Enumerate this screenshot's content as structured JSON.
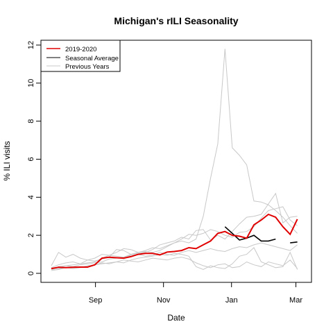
{
  "chart_data": {
    "type": "line",
    "title": "Michigan's rILI Seasonality",
    "xlabel": "Date",
    "ylabel": "% ILI visits",
    "x_ticks": [
      "Sep",
      "Nov",
      "Jan",
      "Mar"
    ],
    "y_ticks": [
      0,
      2,
      4,
      6,
      8,
      10,
      12
    ],
    "ylim": [
      0,
      12
    ],
    "legend": {
      "placement": "top-left",
      "entries": [
        "2019-2020",
        "Seasonal Average",
        "Previous Years"
      ]
    },
    "series": [
      {
        "name": "2019-2020",
        "color": "#e00000",
        "points": [
          [
            0,
            0.25
          ],
          [
            1,
            0.32
          ],
          [
            2,
            0.3
          ],
          [
            3,
            0.32
          ],
          [
            4,
            0.33
          ],
          [
            5,
            0.33
          ],
          [
            6,
            0.45
          ],
          [
            7,
            0.8
          ],
          [
            8,
            0.85
          ],
          [
            9,
            0.82
          ],
          [
            10,
            0.8
          ],
          [
            11,
            0.88
          ],
          [
            12,
            1.0
          ],
          [
            13,
            1.05
          ],
          [
            14,
            1.05
          ],
          [
            15,
            0.97
          ],
          [
            16,
            1.12
          ],
          [
            17,
            1.15
          ],
          [
            18,
            1.2
          ],
          [
            19,
            1.35
          ],
          [
            20,
            1.3
          ],
          [
            21,
            1.5
          ],
          [
            22,
            1.7
          ],
          [
            23,
            2.1
          ],
          [
            24,
            2.2
          ],
          [
            25,
            2.0
          ],
          [
            26,
            1.95
          ],
          [
            27,
            1.85
          ],
          [
            28,
            2.55
          ],
          [
            29,
            2.8
          ],
          [
            30,
            3.1
          ],
          [
            31,
            2.95
          ],
          [
            32,
            2.45
          ],
          [
            33,
            2.05
          ],
          [
            34,
            2.85
          ]
        ]
      },
      {
        "name": "Seasonal Average",
        "color": "#000000",
        "segments": [
          [
            [
              24,
              2.45
            ],
            [
              25,
              2.1
            ],
            [
              26,
              1.75
            ],
            [
              27,
              1.85
            ],
            [
              28,
              2.0
            ],
            [
              29,
              1.7
            ],
            [
              30,
              1.7
            ],
            [
              31,
              1.8
            ]
          ],
          [
            [
              33,
              1.6
            ],
            [
              34,
              1.65
            ]
          ]
        ]
      },
      {
        "name": "Previous Years",
        "color": "#c8c8c8",
        "lines": [
          [
            [
              0,
              0.25
            ],
            [
              1,
              0.3
            ],
            [
              2,
              0.4
            ],
            [
              3,
              0.45
            ],
            [
              4,
              0.5
            ],
            [
              5,
              0.55
            ],
            [
              6,
              0.6
            ],
            [
              7,
              0.8
            ],
            [
              8,
              0.95
            ],
            [
              9,
              0.9
            ],
            [
              10,
              0.85
            ],
            [
              11,
              1.0
            ],
            [
              12,
              1.1
            ],
            [
              13,
              1.15
            ],
            [
              14,
              1.1
            ],
            [
              15,
              1.2
            ],
            [
              16,
              1.4
            ],
            [
              17,
              1.6
            ],
            [
              18,
              1.7
            ],
            [
              19,
              1.6
            ],
            [
              20,
              1.8
            ],
            [
              21,
              3.0
            ],
            [
              22,
              5.0
            ],
            [
              23,
              6.8
            ],
            [
              24,
              11.8
            ],
            [
              25,
              6.6
            ],
            [
              26,
              6.2
            ],
            [
              27,
              5.7
            ],
            [
              28,
              3.8
            ],
            [
              29,
              3.75
            ],
            [
              30,
              3.6
            ],
            [
              31,
              3.3
            ],
            [
              32,
              2.95
            ],
            [
              33,
              2.5
            ],
            [
              34,
              2.1
            ]
          ],
          [
            [
              0,
              0.4
            ],
            [
              1,
              1.1
            ],
            [
              2,
              0.85
            ],
            [
              3,
              1.0
            ],
            [
              4,
              0.8
            ],
            [
              5,
              0.7
            ],
            [
              6,
              0.65
            ],
            [
              7,
              0.75
            ],
            [
              8,
              0.85
            ],
            [
              9,
              1.25
            ],
            [
              10,
              1.2
            ],
            [
              11,
              1.0
            ],
            [
              12,
              1.05
            ],
            [
              13,
              1.1
            ],
            [
              14,
              1.25
            ],
            [
              15,
              1.5
            ],
            [
              16,
              1.6
            ],
            [
              17,
              1.7
            ],
            [
              18,
              1.9
            ],
            [
              19,
              1.8
            ],
            [
              20,
              2.25
            ],
            [
              21,
              2.3
            ],
            [
              22,
              1.75
            ],
            [
              23,
              2.0
            ],
            [
              24,
              1.8
            ],
            [
              25,
              2.2
            ],
            [
              26,
              2.6
            ],
            [
              27,
              2.95
            ],
            [
              28,
              3.0
            ],
            [
              29,
              3.1
            ],
            [
              30,
              3.65
            ],
            [
              31,
              4.2
            ],
            [
              32,
              2.65
            ],
            [
              33,
              2.95
            ],
            [
              34,
              3.0
            ]
          ],
          [
            [
              0,
              0.3
            ],
            [
              1,
              0.45
            ],
            [
              2,
              0.55
            ],
            [
              3,
              0.6
            ],
            [
              4,
              0.5
            ],
            [
              5,
              0.7
            ],
            [
              6,
              0.8
            ],
            [
              7,
              1.0
            ],
            [
              8,
              0.95
            ],
            [
              9,
              1.1
            ],
            [
              10,
              1.3
            ],
            [
              11,
              1.25
            ],
            [
              12,
              1.1
            ],
            [
              13,
              1.2
            ],
            [
              14,
              1.35
            ],
            [
              15,
              1.3
            ],
            [
              16,
              1.45
            ],
            [
              17,
              1.6
            ],
            [
              18,
              1.8
            ],
            [
              19,
              2.05
            ],
            [
              20,
              2.0
            ],
            [
              21,
              2.1
            ],
            [
              22,
              2.3
            ],
            [
              23,
              2.2
            ],
            [
              24,
              2.0
            ],
            [
              25,
              1.9
            ],
            [
              26,
              2.15
            ],
            [
              27,
              2.2
            ],
            [
              28,
              2.45
            ],
            [
              29,
              2.9
            ],
            [
              30,
              3.3
            ],
            [
              31,
              3.4
            ],
            [
              32,
              3.5
            ],
            [
              33,
              2.8
            ],
            [
              34,
              2.5
            ]
          ],
          [
            [
              0,
              0.2
            ],
            [
              1,
              0.35
            ],
            [
              2,
              0.4
            ],
            [
              3,
              0.35
            ],
            [
              4,
              0.45
            ],
            [
              5,
              0.5
            ],
            [
              6,
              0.55
            ],
            [
              7,
              0.6
            ],
            [
              8,
              0.75
            ],
            [
              9,
              0.8
            ],
            [
              10,
              0.85
            ],
            [
              11,
              0.95
            ],
            [
              12,
              1.0
            ],
            [
              13,
              0.9
            ],
            [
              14,
              0.95
            ],
            [
              15,
              1.1
            ],
            [
              16,
              1.0
            ],
            [
              17,
              0.95
            ],
            [
              18,
              1.1
            ],
            [
              19,
              1.2
            ],
            [
              20,
              1.1
            ],
            [
              21,
              1.2
            ],
            [
              22,
              1.3
            ],
            [
              23,
              1.2
            ],
            [
              24,
              1.15
            ],
            [
              25,
              1.3
            ],
            [
              26,
              1.4
            ],
            [
              27,
              1.35
            ],
            [
              28,
              1.5
            ],
            [
              29,
              1.6
            ],
            [
              30,
              1.5
            ],
            [
              31,
              1.4
            ],
            [
              32,
              1.3
            ],
            [
              33,
              1.2
            ],
            [
              34,
              1.5
            ]
          ],
          [
            [
              0,
              0.15
            ],
            [
              1,
              0.2
            ],
            [
              2,
              0.3
            ],
            [
              3,
              0.25
            ],
            [
              4,
              0.3
            ],
            [
              5,
              0.4
            ],
            [
              6,
              0.45
            ],
            [
              7,
              0.5
            ],
            [
              8,
              0.55
            ],
            [
              9,
              0.6
            ],
            [
              10,
              0.7
            ],
            [
              11,
              0.65
            ],
            [
              12,
              0.6
            ],
            [
              13,
              0.7
            ],
            [
              14,
              0.8
            ],
            [
              15,
              0.75
            ],
            [
              16,
              0.7
            ],
            [
              17,
              0.8
            ],
            [
              18,
              0.85
            ],
            [
              19,
              0.75
            ],
            [
              20,
              0.55
            ],
            [
              21,
              0.4
            ],
            [
              22,
              0.3
            ],
            [
              23,
              0.45
            ],
            [
              24,
              0.5
            ],
            [
              25,
              0.3
            ],
            [
              26,
              0.35
            ],
            [
              27,
              0.6
            ],
            [
              28,
              0.45
            ],
            [
              29,
              0.35
            ],
            [
              30,
              0.6
            ],
            [
              31,
              0.5
            ],
            [
              32,
              0.4
            ],
            [
              33,
              0.7
            ],
            [
              34,
              0.25
            ]
          ],
          [
            [
              0,
              0.2
            ],
            [
              1,
              0.25
            ],
            [
              2,
              0.3
            ],
            [
              3,
              0.35
            ],
            [
              4,
              0.3
            ],
            [
              5,
              0.35
            ],
            [
              6,
              0.45
            ],
            [
              7,
              0.55
            ],
            [
              8,
              0.5
            ],
            [
              9,
              0.6
            ],
            [
              10,
              0.55
            ],
            [
              11,
              0.7
            ],
            [
              12,
              0.8
            ],
            [
              13,
              0.85
            ],
            [
              14,
              0.9
            ],
            [
              15,
              1.0
            ],
            [
              16,
              0.95
            ],
            [
              17,
              1.05
            ],
            [
              18,
              1.0
            ],
            [
              19,
              0.9
            ],
            [
              20,
              0.35
            ],
            [
              21,
              0.2
            ],
            [
              22,
              0.4
            ],
            [
              23,
              0.3
            ],
            [
              24,
              0.25
            ],
            [
              25,
              0.5
            ],
            [
              26,
              0.9
            ],
            [
              27,
              1.0
            ],
            [
              28,
              1.35
            ],
            [
              29,
              0.6
            ],
            [
              30,
              0.45
            ],
            [
              31,
              0.3
            ],
            [
              32,
              0.35
            ],
            [
              33,
              1.1
            ],
            [
              34,
              0.2
            ]
          ]
        ]
      }
    ]
  }
}
